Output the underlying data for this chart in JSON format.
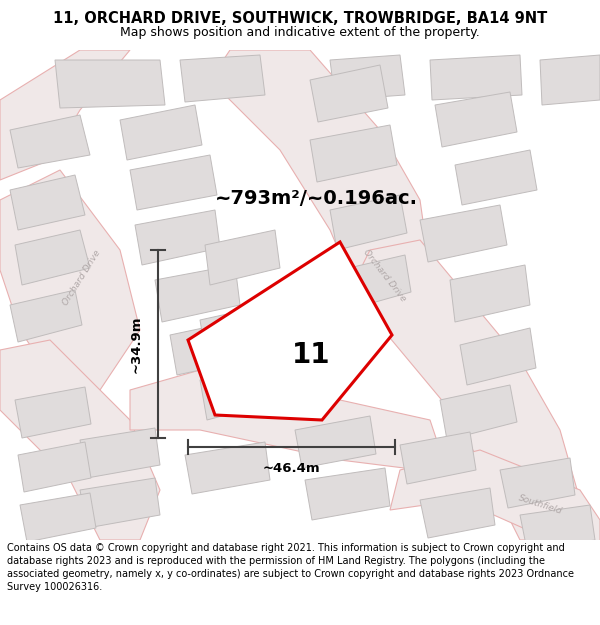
{
  "title": "11, ORCHARD DRIVE, SOUTHWICK, TROWBRIDGE, BA14 9NT",
  "subtitle": "Map shows position and indicative extent of the property.",
  "area_text": "~793m²/~0.196ac.",
  "width_text": "~46.4m",
  "height_text": "~34.9m",
  "plot_number": "11",
  "footer": "Contains OS data © Crown copyright and database right 2021. This information is subject to Crown copyright and database rights 2023 and is reproduced with the permission of HM Land Registry. The polygons (including the associated geometry, namely x, y co-ordinates) are subject to Crown copyright and database rights 2023 Ordnance Survey 100026316.",
  "map_bg": "#f5f5f5",
  "road_line_color": "#e8b0b0",
  "building_face": "#e0dcdc",
  "building_edge": "#c0bcbc",
  "road_label_color": "#b0a8a8",
  "highlight_color": "#dd0000",
  "highlight_fill": "#ffffff",
  "dim_line_color": "#404040",
  "title_fontsize": 10.5,
  "subtitle_fontsize": 9,
  "footer_fontsize": 7.0,
  "area_fontsize": 14,
  "plot_num_fontsize": 20,
  "dim_fontsize": 9.5,
  "road_lw": 0.8,
  "building_lw": 0.7,
  "prop_lw": 2.2
}
